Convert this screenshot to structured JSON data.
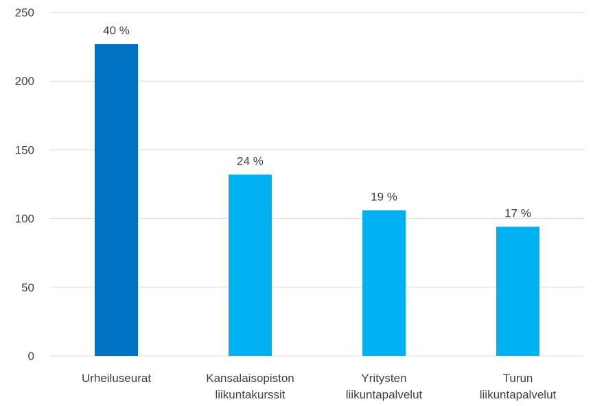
{
  "chart_data": {
    "type": "bar",
    "categories": [
      [
        "Urheiluseurat"
      ],
      [
        "Kansalaisopiston",
        "liikuntakurssit"
      ],
      [
        "Yritysten",
        "liikuntapalvelut"
      ],
      [
        "Turun",
        "liikuntapalvelut"
      ]
    ],
    "values": [
      227,
      132,
      106,
      94
    ],
    "data_labels": [
      "40 %",
      "24 %",
      "19 %",
      "17 %"
    ],
    "bar_colors": [
      "#0070c0",
      "#00b0f0",
      "#00b0f0",
      "#00b0f0"
    ],
    "ylim": [
      0,
      250
    ],
    "y_ticks": [
      0,
      50,
      100,
      150,
      200,
      250
    ],
    "grid": true,
    "title": "",
    "xlabel": "",
    "ylabel": ""
  }
}
